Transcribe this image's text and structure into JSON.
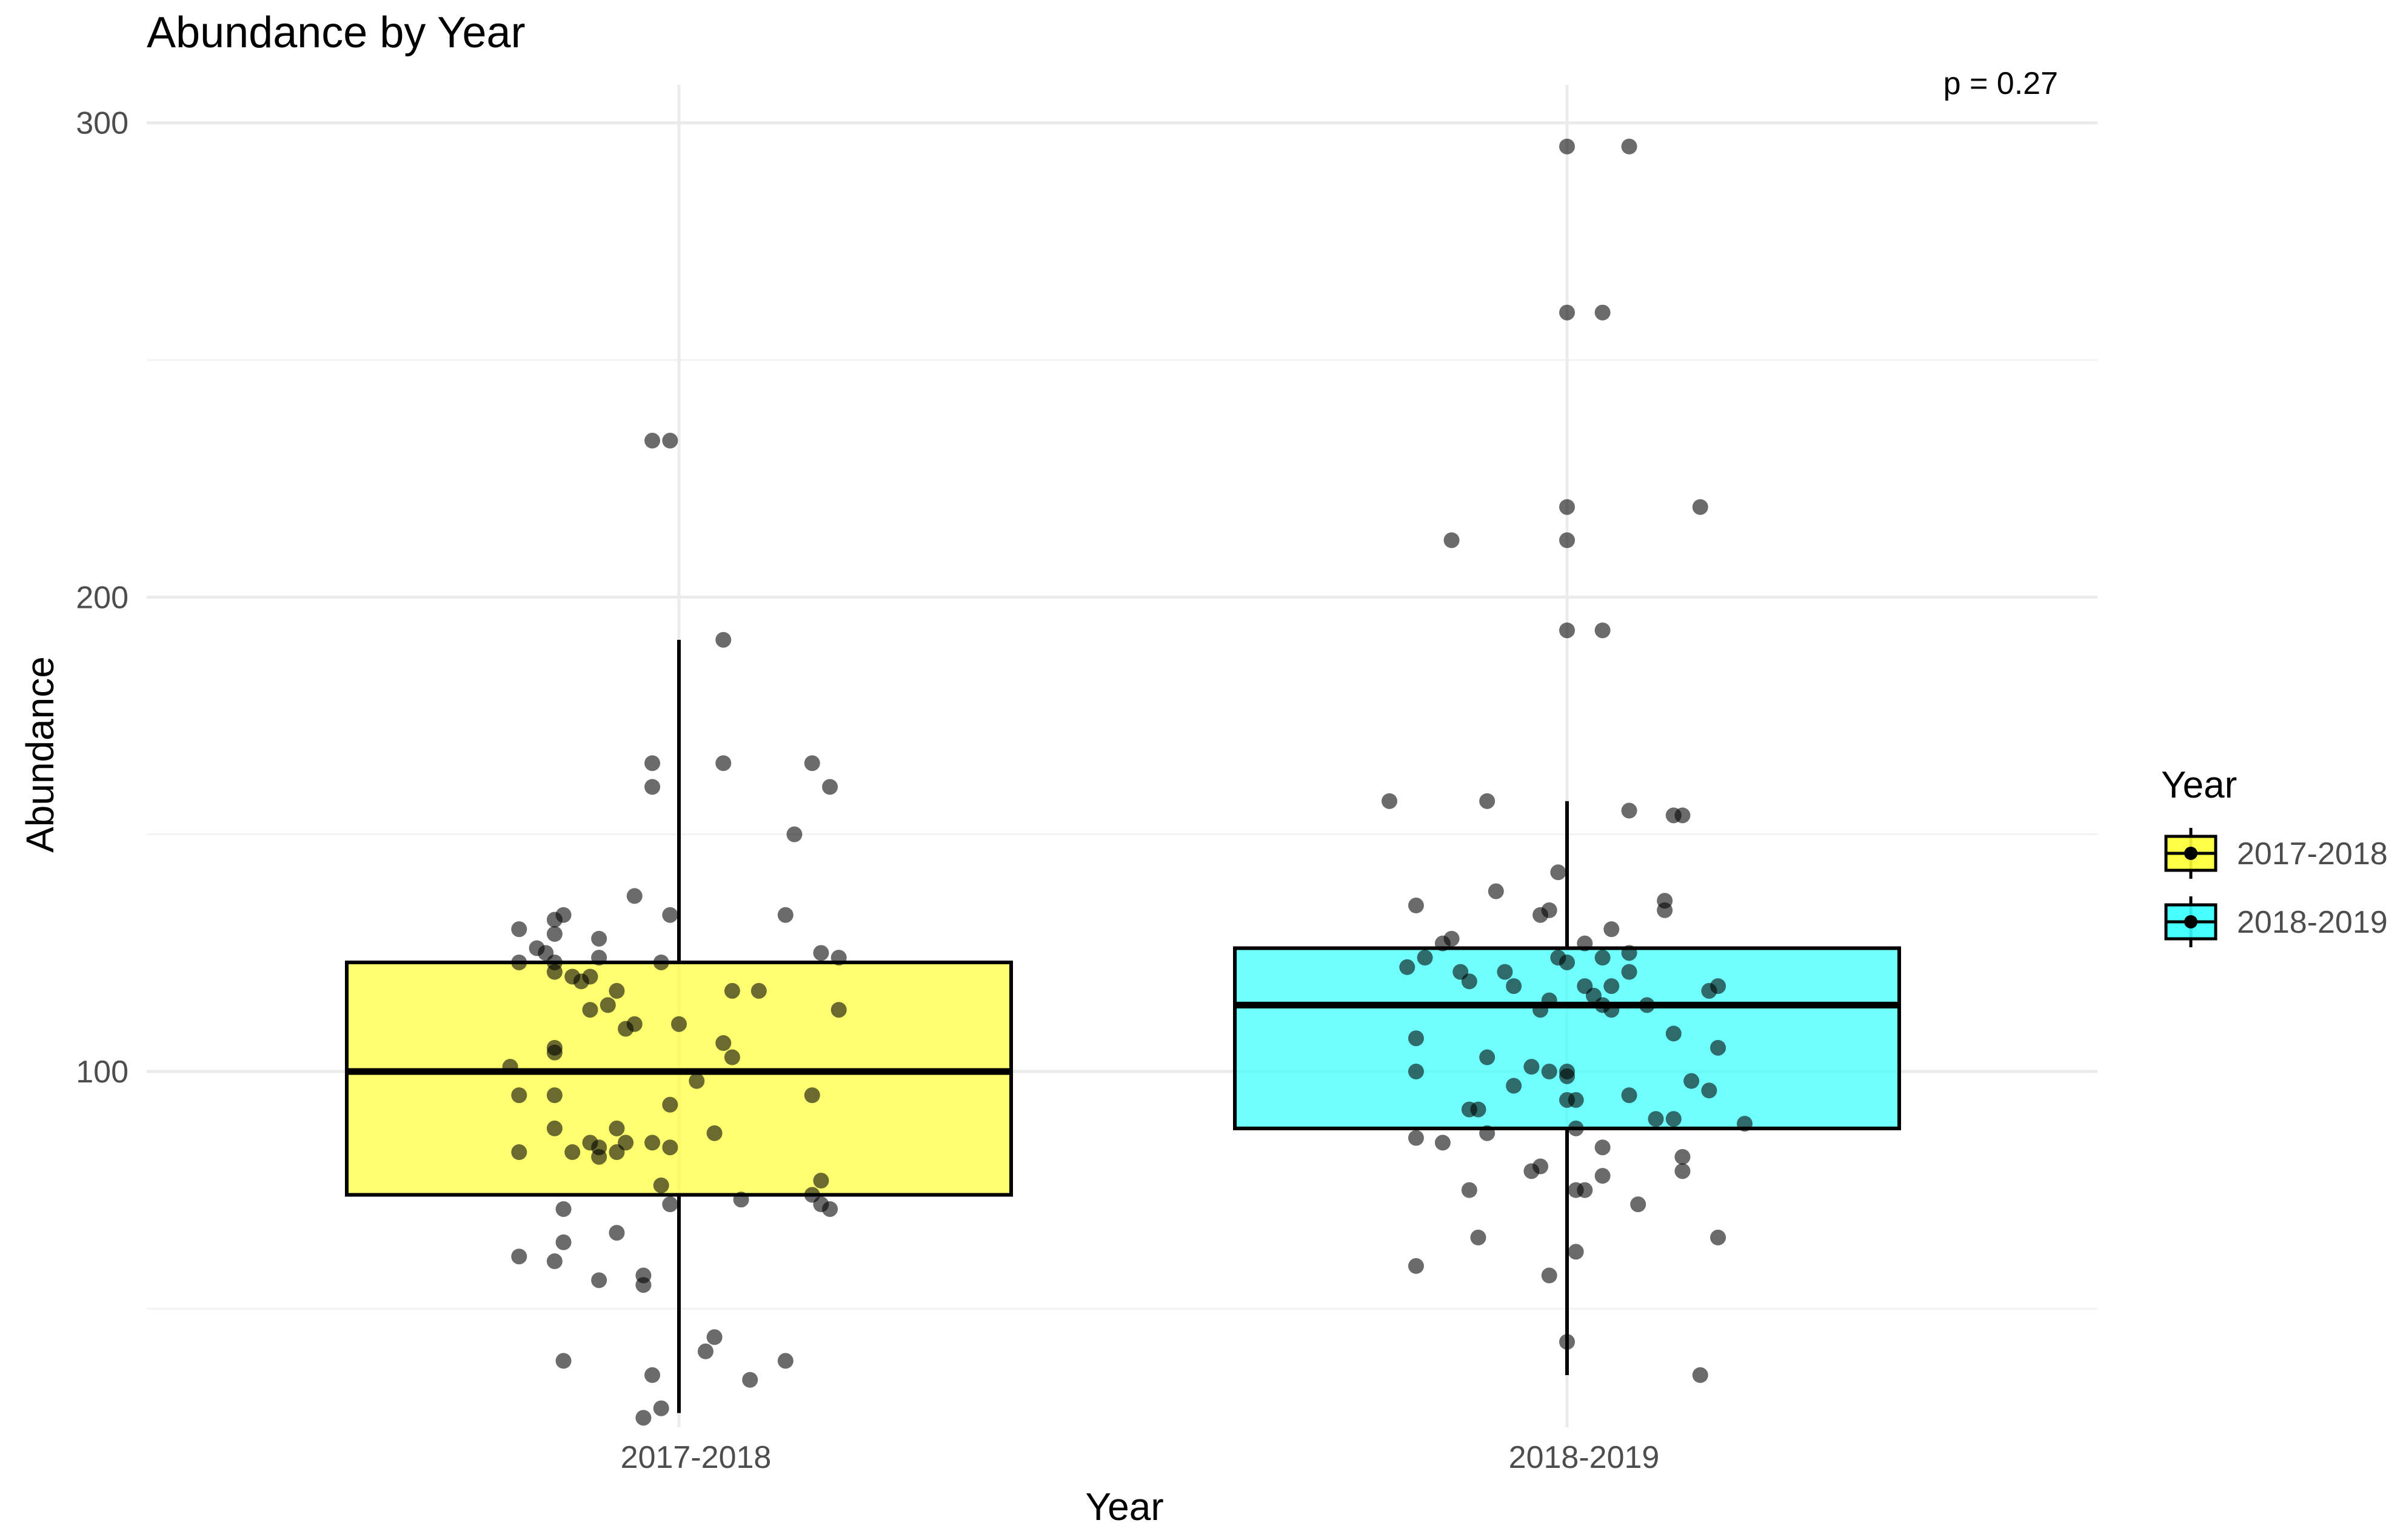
{
  "chart_data": {
    "type": "box",
    "title": "Abundance by Year",
    "xlabel": "Year",
    "ylabel": "Abundance",
    "categories": [
      "2017-2018",
      "2018-2019"
    ],
    "ylim": [
      25,
      308
    ],
    "yticks": [
      100,
      200,
      300
    ],
    "grid": true,
    "annotation": "p = 0.27",
    "legend": {
      "title": "Year",
      "position": "right",
      "entries": [
        "2017-2018",
        "2018-2019"
      ]
    },
    "series": [
      {
        "name": "2017-2018",
        "color": "#ffff33",
        "box": {
          "whisker_low": 28,
          "q1": 74,
          "median": 100,
          "q3": 123,
          "whisker_high": 191
        },
        "points": [
          [
            -0.03,
            233
          ],
          [
            -0.01,
            233
          ],
          [
            0.05,
            191
          ],
          [
            -0.03,
            165
          ],
          [
            0.05,
            165
          ],
          [
            0.15,
            165
          ],
          [
            -0.03,
            160
          ],
          [
            0.17,
            160
          ],
          [
            0.13,
            150
          ],
          [
            -0.05,
            137
          ],
          [
            -0.01,
            133
          ],
          [
            0.12,
            133
          ],
          [
            -0.13,
            133
          ],
          [
            -0.14,
            132
          ],
          [
            -0.18,
            130
          ],
          [
            -0.14,
            129
          ],
          [
            -0.09,
            128
          ],
          [
            -0.16,
            126
          ],
          [
            -0.15,
            125
          ],
          [
            0.16,
            125
          ],
          [
            0.18,
            124
          ],
          [
            -0.18,
            123
          ],
          [
            -0.09,
            124
          ],
          [
            -0.14,
            123
          ],
          [
            -0.02,
            123
          ],
          [
            -0.14,
            121
          ],
          [
            -0.12,
            120
          ],
          [
            -0.1,
            120
          ],
          [
            -0.11,
            119
          ],
          [
            -0.07,
            117
          ],
          [
            0.09,
            117
          ],
          [
            0.06,
            117
          ],
          [
            -0.08,
            114
          ],
          [
            -0.1,
            113
          ],
          [
            0.18,
            113
          ],
          [
            -0.05,
            110
          ],
          [
            -0.06,
            109
          ],
          [
            0.0,
            110
          ],
          [
            -0.14,
            105
          ],
          [
            -0.14,
            104
          ],
          [
            0.05,
            106
          ],
          [
            0.06,
            103
          ],
          [
            -0.19,
            101
          ],
          [
            0.02,
            98
          ],
          [
            0.15,
            95
          ],
          [
            -0.18,
            95
          ],
          [
            -0.14,
            95
          ],
          [
            -0.01,
            93
          ],
          [
            -0.14,
            88
          ],
          [
            -0.07,
            88
          ],
          [
            0.04,
            87
          ],
          [
            -0.1,
            85
          ],
          [
            -0.09,
            84
          ],
          [
            -0.01,
            84
          ],
          [
            -0.06,
            85
          ],
          [
            -0.12,
            83
          ],
          [
            -0.18,
            83
          ],
          [
            -0.09,
            82
          ],
          [
            -0.03,
            85
          ],
          [
            -0.07,
            83
          ],
          [
            0.16,
            77
          ],
          [
            -0.02,
            76
          ],
          [
            0.15,
            74
          ],
          [
            0.07,
            73
          ],
          [
            0.17,
            71
          ],
          [
            0.16,
            72
          ],
          [
            -0.13,
            71
          ],
          [
            -0.01,
            72
          ],
          [
            -0.07,
            66
          ],
          [
            -0.13,
            64
          ],
          [
            -0.14,
            60
          ],
          [
            -0.18,
            61
          ],
          [
            -0.04,
            57
          ],
          [
            -0.09,
            56
          ],
          [
            -0.04,
            55
          ],
          [
            0.04,
            44
          ],
          [
            0.03,
            41
          ],
          [
            0.12,
            39
          ],
          [
            -0.13,
            39
          ],
          [
            -0.03,
            36
          ],
          [
            0.08,
            35
          ],
          [
            -0.02,
            29
          ],
          [
            -0.04,
            27
          ]
        ]
      },
      {
        "name": "2018-2019",
        "color": "#33ffff",
        "box": {
          "whisker_low": 36,
          "q1": 88,
          "median": 114,
          "q3": 126,
          "whisker_high": 157
        },
        "points": [
          [
            0.0,
            295
          ],
          [
            0.07,
            295
          ],
          [
            0.0,
            260
          ],
          [
            0.04,
            260
          ],
          [
            0.0,
            219
          ],
          [
            0.15,
            219
          ],
          [
            -0.13,
            212
          ],
          [
            0.0,
            212
          ],
          [
            0.0,
            193
          ],
          [
            0.04,
            193
          ],
          [
            -0.2,
            157
          ],
          [
            -0.09,
            157
          ],
          [
            0.07,
            155
          ],
          [
            0.13,
            154
          ],
          [
            0.12,
            154
          ],
          [
            -0.01,
            142
          ],
          [
            -0.08,
            138
          ],
          [
            0.11,
            136
          ],
          [
            -0.17,
            135
          ],
          [
            0.11,
            134
          ],
          [
            -0.02,
            134
          ],
          [
            -0.03,
            133
          ],
          [
            0.05,
            130
          ],
          [
            -0.13,
            128
          ],
          [
            0.02,
            127
          ],
          [
            -0.14,
            127
          ],
          [
            0.07,
            125
          ],
          [
            -0.16,
            124
          ],
          [
            0.04,
            124
          ],
          [
            0.0,
            123
          ],
          [
            -0.01,
            124
          ],
          [
            -0.18,
            122
          ],
          [
            -0.12,
            121
          ],
          [
            -0.07,
            121
          ],
          [
            0.07,
            121
          ],
          [
            -0.11,
            119
          ],
          [
            -0.06,
            118
          ],
          [
            0.05,
            118
          ],
          [
            0.02,
            118
          ],
          [
            0.17,
            118
          ],
          [
            0.16,
            117
          ],
          [
            0.03,
            116
          ],
          [
            -0.02,
            115
          ],
          [
            0.04,
            114
          ],
          [
            0.09,
            114
          ],
          [
            -0.03,
            113
          ],
          [
            0.05,
            113
          ],
          [
            -0.17,
            107
          ],
          [
            0.12,
            108
          ],
          [
            0.17,
            105
          ],
          [
            -0.09,
            103
          ],
          [
            -0.04,
            101
          ],
          [
            0.0,
            100
          ],
          [
            -0.02,
            100
          ],
          [
            -0.17,
            100
          ],
          [
            0.14,
            98
          ],
          [
            0.0,
            99
          ],
          [
            -0.06,
            97
          ],
          [
            0.16,
            96
          ],
          [
            0.07,
            95
          ],
          [
            0.01,
            94
          ],
          [
            0.0,
            94
          ],
          [
            -0.11,
            92
          ],
          [
            -0.1,
            92
          ],
          [
            0.1,
            90
          ],
          [
            0.12,
            90
          ],
          [
            0.2,
            89
          ],
          [
            0.01,
            88
          ],
          [
            -0.09,
            87
          ],
          [
            -0.17,
            86
          ],
          [
            -0.14,
            85
          ],
          [
            0.04,
            84
          ],
          [
            0.13,
            82
          ],
          [
            -0.03,
            80
          ],
          [
            -0.04,
            79
          ],
          [
            0.04,
            78
          ],
          [
            0.13,
            79
          ],
          [
            -0.11,
            75
          ],
          [
            0.02,
            75
          ],
          [
            0.01,
            75
          ],
          [
            0.08,
            72
          ],
          [
            -0.1,
            65
          ],
          [
            0.17,
            65
          ],
          [
            0.01,
            62
          ],
          [
            -0.17,
            59
          ],
          [
            -0.02,
            57
          ],
          [
            0.0,
            43
          ],
          [
            0.15,
            36
          ]
        ]
      }
    ]
  }
}
